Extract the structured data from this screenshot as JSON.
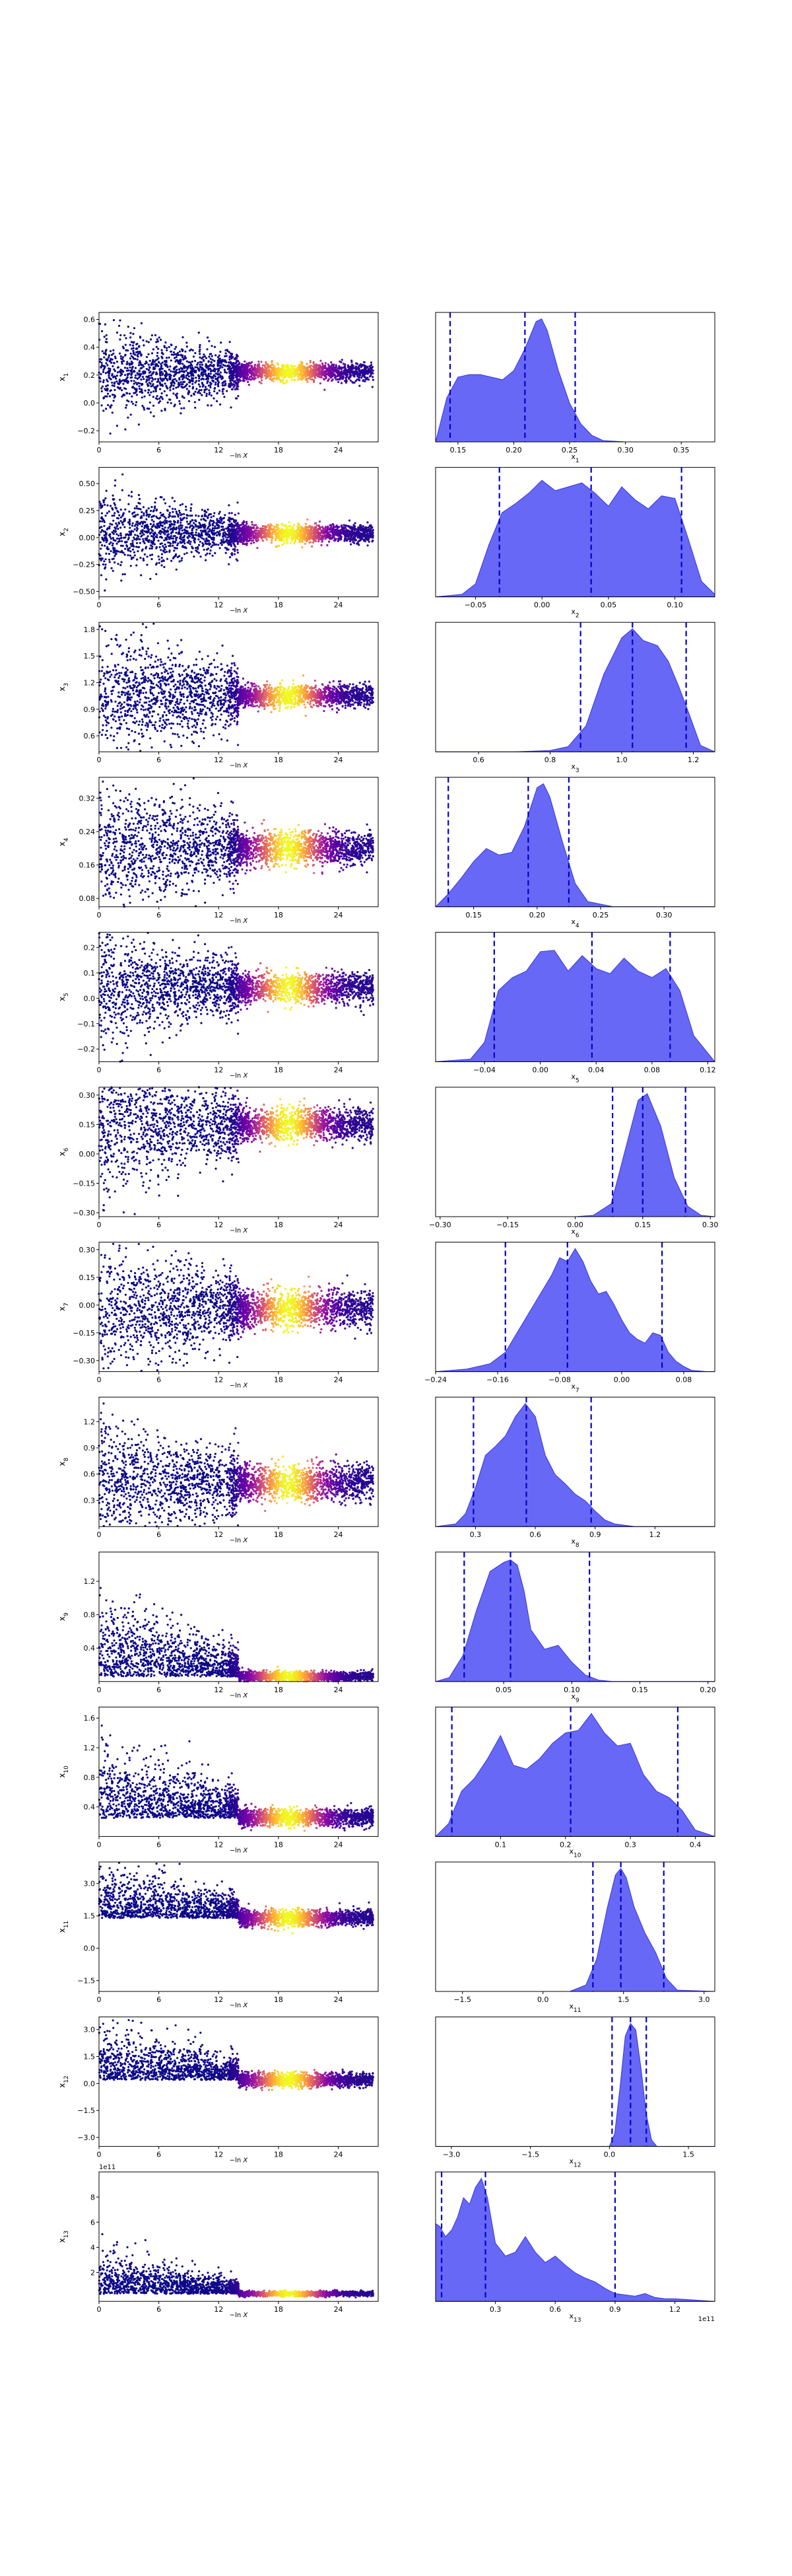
{
  "chart_data": [
    {
      "type": "scatter",
      "row": 1,
      "xlabel": "−ln X",
      "ylabel": "x_1",
      "xticks": [
        "0",
        "6",
        "12",
        "18",
        "24"
      ],
      "xlim": [
        0,
        28
      ],
      "ylim": [
        -0.28,
        0.65
      ],
      "yticks": [
        "0.6",
        "0.4",
        "0.2",
        "0.0",
        "−0.2"
      ],
      "ytick_values": [
        0.6,
        0.4,
        0.2,
        0.0,
        -0.2
      ],
      "center": 0.22,
      "head_spread": 0.13,
      "tail_spread": 0.03
    },
    {
      "type": "area",
      "row": 1,
      "xlabel": "x_1",
      "xlim": [
        0.13,
        0.38
      ],
      "xticks": [
        "0.15",
        "0.20",
        "0.25",
        "0.30",
        "0.35"
      ],
      "xtick_values": [
        0.15,
        0.2,
        0.25,
        0.3,
        0.35
      ],
      "x": [
        0.13,
        0.14,
        0.15,
        0.16,
        0.17,
        0.18,
        0.19,
        0.2,
        0.21,
        0.22,
        0.225,
        0.23,
        0.24,
        0.25,
        0.26,
        0.27,
        0.28,
        0.3,
        0.38
      ],
      "y": [
        0.0,
        0.34,
        0.5,
        0.52,
        0.52,
        0.5,
        0.48,
        0.55,
        0.72,
        0.93,
        0.95,
        0.86,
        0.55,
        0.3,
        0.14,
        0.05,
        0.01,
        0.0,
        0.0
      ],
      "quantile_lines": [
        0.143,
        0.21,
        0.255
      ]
    },
    {
      "type": "scatter",
      "row": 2,
      "xlabel": "−ln X",
      "ylabel": "x_2",
      "xticks": [
        "0",
        "6",
        "12",
        "18",
        "24"
      ],
      "xlim": [
        0,
        28
      ],
      "ylim": [
        -0.55,
        0.65
      ],
      "yticks": [
        "0.50",
        "0.25",
        "0.00",
        "−0.25",
        "−0.50"
      ],
      "ytick_values": [
        0.5,
        0.25,
        0.0,
        -0.25,
        -0.5
      ],
      "center": 0.04,
      "head_spread": 0.15,
      "tail_spread": 0.04
    },
    {
      "type": "area",
      "row": 2,
      "xlabel": "x_2",
      "xlim": [
        -0.08,
        0.13
      ],
      "xticks": [
        "−0.05",
        "0.00",
        "0.05",
        "0.10"
      ],
      "xtick_values": [
        -0.05,
        0.0,
        0.05,
        0.1
      ],
      "x": [
        -0.08,
        -0.06,
        -0.05,
        -0.04,
        -0.03,
        -0.02,
        -0.01,
        0.0,
        0.01,
        0.02,
        0.03,
        0.04,
        0.05,
        0.06,
        0.07,
        0.08,
        0.09,
        0.1,
        0.11,
        0.12,
        0.13
      ],
      "y": [
        0.0,
        0.02,
        0.1,
        0.4,
        0.65,
        0.72,
        0.8,
        0.9,
        0.82,
        0.85,
        0.88,
        0.8,
        0.7,
        0.85,
        0.75,
        0.68,
        0.78,
        0.76,
        0.45,
        0.12,
        0.02
      ],
      "quantile_lines": [
        -0.032,
        0.037,
        0.105
      ]
    },
    {
      "type": "scatter",
      "row": 3,
      "xlabel": "−ln X",
      "ylabel": "x_3",
      "xticks": [
        "0",
        "6",
        "12",
        "18",
        "24"
      ],
      "xlim": [
        0,
        28
      ],
      "ylim": [
        0.42,
        1.88
      ],
      "yticks": [
        "1.8",
        "1.5",
        "1.2",
        "0.9",
        "0.6"
      ],
      "ytick_values": [
        1.8,
        1.5,
        1.2,
        0.9,
        0.6
      ],
      "center": 1.05,
      "head_spread": 0.3,
      "tail_spread": 0.06
    },
    {
      "type": "area",
      "row": 3,
      "xlabel": "x_3",
      "xlim": [
        0.48,
        1.26
      ],
      "xticks": [
        "0.6",
        "0.8",
        "1.0",
        "1.2"
      ],
      "xtick_values": [
        0.6,
        0.8,
        1.0,
        1.2
      ],
      "x": [
        0.48,
        0.7,
        0.8,
        0.85,
        0.9,
        0.95,
        1.0,
        1.03,
        1.06,
        1.1,
        1.13,
        1.16,
        1.19,
        1.22,
        1.26
      ],
      "y": [
        0.0,
        0.0,
        0.01,
        0.04,
        0.2,
        0.6,
        0.88,
        0.95,
        0.86,
        0.82,
        0.7,
        0.5,
        0.28,
        0.05,
        0.0
      ],
      "quantile_lines": [
        0.885,
        1.03,
        1.18
      ]
    },
    {
      "type": "scatter",
      "row": 4,
      "xlabel": "−ln X",
      "ylabel": "x_4",
      "xticks": [
        "0",
        "6",
        "12",
        "18",
        "24"
      ],
      "xlim": [
        0,
        28
      ],
      "ylim": [
        0.06,
        0.37
      ],
      "yticks": [
        "0.32",
        "0.24",
        "0.16",
        "0.08"
      ],
      "ytick_values": [
        0.32,
        0.24,
        0.16,
        0.08
      ],
      "center": 0.2,
      "head_spread": 0.06,
      "tail_spread": 0.02
    },
    {
      "type": "area",
      "row": 4,
      "xlabel": "x_4",
      "xlim": [
        0.12,
        0.34
      ],
      "xticks": [
        "0.15",
        "0.20",
        "0.25",
        "0.30"
      ],
      "xtick_values": [
        0.15,
        0.2,
        0.25,
        0.3
      ],
      "x": [
        0.12,
        0.13,
        0.14,
        0.15,
        0.16,
        0.17,
        0.18,
        0.19,
        0.2,
        0.205,
        0.21,
        0.22,
        0.23,
        0.24,
        0.26,
        0.34
      ],
      "y": [
        0.0,
        0.1,
        0.22,
        0.35,
        0.45,
        0.4,
        0.42,
        0.62,
        0.92,
        0.95,
        0.85,
        0.5,
        0.18,
        0.04,
        0.0,
        0.0
      ],
      "quantile_lines": [
        0.13,
        0.193,
        0.225
      ]
    },
    {
      "type": "scatter",
      "row": 5,
      "xlabel": "−ln X",
      "ylabel": "x_5",
      "xticks": [
        "0",
        "6",
        "12",
        "18",
        "24"
      ],
      "xlim": [
        0,
        28
      ],
      "ylim": [
        -0.25,
        0.26
      ],
      "yticks": [
        "0.2",
        "0.1",
        "0.0",
        "−0.1",
        "−0.2"
      ],
      "ytick_values": [
        0.2,
        0.1,
        0.0,
        -0.1,
        -0.2
      ],
      "center": 0.04,
      "head_spread": 0.08,
      "tail_spread": 0.03
    },
    {
      "type": "area",
      "row": 5,
      "xlabel": "x_5",
      "xlim": [
        -0.075,
        0.125
      ],
      "xticks": [
        "−0.04",
        "0.00",
        "0.04",
        "0.08",
        "0.12"
      ],
      "xtick_values": [
        -0.04,
        0.0,
        0.04,
        0.08,
        0.12
      ],
      "x": [
        -0.075,
        -0.05,
        -0.04,
        -0.03,
        -0.02,
        -0.01,
        0.0,
        0.01,
        0.02,
        0.03,
        0.04,
        0.05,
        0.06,
        0.07,
        0.08,
        0.09,
        0.1,
        0.11,
        0.125
      ],
      "y": [
        0.0,
        0.02,
        0.15,
        0.55,
        0.65,
        0.7,
        0.85,
        0.86,
        0.7,
        0.82,
        0.72,
        0.68,
        0.8,
        0.7,
        0.65,
        0.72,
        0.55,
        0.2,
        0.0
      ],
      "quantile_lines": [
        -0.033,
        0.037,
        0.093
      ]
    },
    {
      "type": "scatter",
      "row": 6,
      "xlabel": "−ln X",
      "ylabel": "x_6",
      "xticks": [
        "0",
        "6",
        "12",
        "18",
        "24"
      ],
      "xlim": [
        0,
        28
      ],
      "ylim": [
        -0.32,
        0.34
      ],
      "yticks": [
        "0.30",
        "0.15",
        "0.00",
        "−0.15",
        "−0.30"
      ],
      "ytick_values": [
        0.3,
        0.15,
        0.0,
        -0.15,
        -0.3
      ],
      "center": 0.15,
      "head_spread": 0.14,
      "tail_spread": 0.04
    },
    {
      "type": "area",
      "row": 6,
      "xlabel": "x_6",
      "xlim": [
        -0.31,
        0.31
      ],
      "xticks": [
        "−0.30",
        "−0.15",
        "0.00",
        "0.15",
        "0.30"
      ],
      "xtick_values": [
        -0.3,
        -0.15,
        0.0,
        0.15,
        0.3
      ],
      "x": [
        -0.31,
        0.0,
        0.04,
        0.08,
        0.11,
        0.14,
        0.16,
        0.19,
        0.22,
        0.25,
        0.28,
        0.31
      ],
      "y": [
        0.0,
        0.0,
        0.01,
        0.1,
        0.5,
        0.9,
        0.95,
        0.7,
        0.3,
        0.08,
        0.01,
        0.0
      ],
      "quantile_lines": [
        0.083,
        0.15,
        0.245
      ]
    },
    {
      "type": "scatter",
      "row": 7,
      "xlabel": "−ln X",
      "ylabel": "x_7",
      "xticks": [
        "0",
        "6",
        "12",
        "18",
        "24"
      ],
      "xlim": [
        0,
        28
      ],
      "ylim": [
        -0.36,
        0.34
      ],
      "yticks": [
        "0.30",
        "0.15",
        "0.00",
        "−0.15",
        "−0.30"
      ],
      "ytick_values": [
        0.3,
        0.15,
        0.0,
        -0.15,
        -0.3
      ],
      "center": -0.02,
      "head_spread": 0.13,
      "tail_spread": 0.05
    },
    {
      "type": "area",
      "row": 7,
      "xlabel": "x_7",
      "xlim": [
        -0.24,
        0.12
      ],
      "xticks": [
        "−0.24",
        "−0.16",
        "−0.08",
        "0.00",
        "0.08"
      ],
      "xtick_values": [
        -0.24,
        -0.16,
        -0.08,
        0.0,
        0.08
      ],
      "x": [
        -0.24,
        -0.2,
        -0.17,
        -0.15,
        -0.13,
        -0.11,
        -0.09,
        -0.08,
        -0.07,
        -0.06,
        -0.05,
        -0.04,
        -0.03,
        -0.02,
        -0.01,
        0.0,
        0.01,
        0.02,
        0.03,
        0.04,
        0.05,
        0.06,
        0.07,
        0.08,
        0.09,
        0.11,
        0.12
      ],
      "y": [
        0.0,
        0.02,
        0.06,
        0.15,
        0.35,
        0.55,
        0.75,
        0.88,
        0.85,
        0.95,
        0.85,
        0.7,
        0.6,
        0.62,
        0.52,
        0.4,
        0.3,
        0.25,
        0.22,
        0.3,
        0.28,
        0.15,
        0.08,
        0.04,
        0.01,
        0.0,
        0.0
      ],
      "quantile_lines": [
        -0.15,
        -0.07,
        0.052
      ]
    },
    {
      "type": "scatter",
      "row": 8,
      "xlabel": "−ln X",
      "ylabel": "x_8",
      "xticks": [
        "0",
        "6",
        "12",
        "18",
        "24"
      ],
      "xlim": [
        0,
        28
      ],
      "ylim": [
        0.0,
        1.48
      ],
      "yticks": [
        "1.2",
        "0.9",
        "0.6",
        "0.3"
      ],
      "ytick_values": [
        1.2,
        0.9,
        0.6,
        0.3
      ],
      "center": 0.5,
      "head_spread": 0.25,
      "tail_spread": 0.1
    },
    {
      "type": "area",
      "row": 8,
      "xlabel": "x_8",
      "xlim": [
        0.1,
        1.5
      ],
      "xticks": [
        "0.3",
        "0.6",
        "0.9",
        "1.2"
      ],
      "xtick_values": [
        0.3,
        0.6,
        0.9,
        1.2
      ],
      "x": [
        0.1,
        0.2,
        0.25,
        0.3,
        0.35,
        0.4,
        0.45,
        0.5,
        0.55,
        0.6,
        0.65,
        0.7,
        0.75,
        0.8,
        0.85,
        0.9,
        0.95,
        1.0,
        1.1,
        1.5
      ],
      "y": [
        0.0,
        0.02,
        0.1,
        0.3,
        0.55,
        0.62,
        0.7,
        0.85,
        0.95,
        0.85,
        0.55,
        0.4,
        0.33,
        0.25,
        0.2,
        0.12,
        0.05,
        0.02,
        0.0,
        0.0
      ],
      "quantile_lines": [
        0.29,
        0.555,
        0.88
      ]
    },
    {
      "type": "scatter",
      "row": 9,
      "xlabel": "−ln X",
      "ylabel": "x_9",
      "xticks": [
        "0",
        "6",
        "12",
        "18",
        "24"
      ],
      "xlim": [
        0,
        28
      ],
      "ylim": [
        0.0,
        1.55
      ],
      "yticks": [
        "1.2",
        "0.8",
        "0.4"
      ],
      "ytick_values": [
        1.2,
        0.8,
        0.4
      ],
      "center": 0.06,
      "head_spread": 0.4,
      "tail_spread": 0.03
    },
    {
      "type": "area",
      "row": 9,
      "xlabel": "x_9",
      "xlim": [
        0.0,
        0.205
      ],
      "xticks": [
        "0.05",
        "0.10",
        "0.15",
        "0.20"
      ],
      "xtick_values": [
        0.05,
        0.1,
        0.15,
        0.2
      ],
      "x": [
        0.0,
        0.01,
        0.02,
        0.03,
        0.04,
        0.05,
        0.055,
        0.06,
        0.065,
        0.07,
        0.08,
        0.09,
        0.1,
        0.11,
        0.12,
        0.13,
        0.205
      ],
      "y": [
        0.0,
        0.03,
        0.2,
        0.55,
        0.85,
        0.92,
        0.94,
        0.9,
        0.7,
        0.4,
        0.25,
        0.28,
        0.15,
        0.05,
        0.01,
        0.0,
        0.0
      ],
      "quantile_lines": [
        0.021,
        0.055,
        0.113
      ]
    },
    {
      "type": "scatter",
      "row": 10,
      "xlabel": "−ln X",
      "ylabel": "x_10",
      "xticks": [
        "0",
        "6",
        "12",
        "18",
        "24"
      ],
      "xlim": [
        0,
        28
      ],
      "ylim": [
        0.0,
        1.75
      ],
      "yticks": [
        "1.6",
        "1.2",
        "0.8",
        "0.4"
      ],
      "ytick_values": [
        1.6,
        1.2,
        0.8,
        0.4
      ],
      "center": 0.25,
      "head_spread": 0.4,
      "tail_spread": 0.06
    },
    {
      "type": "area",
      "row": 10,
      "xlabel": "x_10",
      "xlim": [
        0.0,
        0.43
      ],
      "xticks": [
        "0.1",
        "0.2",
        "0.3",
        "0.4"
      ],
      "xtick_values": [
        0.1,
        0.2,
        0.3,
        0.4
      ],
      "x": [
        0.0,
        0.02,
        0.04,
        0.06,
        0.08,
        0.1,
        0.12,
        0.14,
        0.16,
        0.18,
        0.2,
        0.22,
        0.24,
        0.26,
        0.28,
        0.3,
        0.32,
        0.34,
        0.36,
        0.38,
        0.4,
        0.43
      ],
      "y": [
        0.0,
        0.1,
        0.35,
        0.45,
        0.6,
        0.78,
        0.55,
        0.52,
        0.6,
        0.72,
        0.8,
        0.82,
        0.95,
        0.8,
        0.7,
        0.72,
        0.48,
        0.35,
        0.3,
        0.2,
        0.05,
        0.0
      ],
      "quantile_lines": [
        0.025,
        0.208,
        0.373
      ]
    },
    {
      "type": "scatter",
      "row": 11,
      "xlabel": "−ln X",
      "ylabel": "x_11",
      "xticks": [
        "0",
        "6",
        "12",
        "18",
        "24"
      ],
      "xlim": [
        0,
        28
      ],
      "ylim": [
        -2.0,
        4.0
      ],
      "yticks": [
        "3.0",
        "1.5",
        "0.0",
        "−1.5"
      ],
      "ytick_values": [
        3.0,
        1.5,
        0.0,
        -1.5
      ],
      "center": 1.4,
      "head_spread": 0.9,
      "tail_spread": 0.2
    },
    {
      "type": "area",
      "row": 11,
      "xlabel": "x_11",
      "xlim": [
        -2.0,
        3.2
      ],
      "xticks": [
        "−1.5",
        "0.0",
        "1.5",
        "3.0"
      ],
      "xtick_values": [
        -1.5,
        0.0,
        1.5,
        3.0
      ],
      "x": [
        -2.0,
        0.5,
        0.8,
        1.0,
        1.2,
        1.35,
        1.45,
        1.55,
        1.7,
        1.9,
        2.1,
        2.3,
        2.5,
        3.2
      ],
      "y": [
        0.0,
        0.0,
        0.05,
        0.25,
        0.65,
        0.9,
        0.95,
        0.88,
        0.65,
        0.45,
        0.3,
        0.1,
        0.01,
        0.0
      ],
      "quantile_lines": [
        0.93,
        1.45,
        2.25
      ]
    },
    {
      "type": "scatter",
      "row": 12,
      "xlabel": "−ln X",
      "ylabel": "x_12",
      "xticks": [
        "0",
        "6",
        "12",
        "18",
        "24"
      ],
      "xlim": [
        0,
        28
      ],
      "ylim": [
        -3.5,
        3.7
      ],
      "yticks": [
        "3.0",
        "1.5",
        "0.0",
        "−1.5",
        "−3.0"
      ],
      "ytick_values": [
        3.0,
        1.5,
        0.0,
        -1.5,
        -3.0
      ],
      "center": 0.2,
      "head_spread": 1.2,
      "tail_spread": 0.2
    },
    {
      "type": "area",
      "row": 12,
      "xlabel": "x_12",
      "xlim": [
        -3.3,
        2.0
      ],
      "xticks": [
        "−3.0",
        "−1.5",
        "0.0",
        "1.5"
      ],
      "xtick_values": [
        -3.0,
        -1.5,
        0.0,
        1.5
      ],
      "x": [
        -3.3,
        0.0,
        0.1,
        0.2,
        0.3,
        0.4,
        0.5,
        0.6,
        0.7,
        0.8,
        0.9,
        2.0
      ],
      "y": [
        0.0,
        0.0,
        0.1,
        0.45,
        0.85,
        0.95,
        0.9,
        0.6,
        0.25,
        0.05,
        0.0,
        0.0
      ],
      "quantile_lines": [
        0.05,
        0.4,
        0.7
      ]
    },
    {
      "type": "scatter",
      "row": 13,
      "xlabel": "−ln X",
      "ylabel": "x_13",
      "xticks": [
        "0",
        "6",
        "12",
        "18",
        "24"
      ],
      "xlim": [
        0,
        28
      ],
      "ylim": [
        -0.3,
        10.0
      ],
      "yticks": [
        "8",
        "6",
        "4",
        "2"
      ],
      "ytick_values": [
        8,
        6,
        4,
        2
      ],
      "offset_text": "1e11",
      "center": 0.3,
      "head_spread": 1.5,
      "tail_spread": 0.1
    },
    {
      "type": "area",
      "row": 13,
      "xlabel": "x_13",
      "xlim": [
        0.0,
        1.4
      ],
      "xticks": [
        "0.3",
        "0.6",
        "0.9",
        "1.2"
      ],
      "xtick_values": [
        0.3,
        0.6,
        0.9,
        1.2
      ],
      "offset_text": "1e11",
      "x": [
        0.0,
        0.02,
        0.05,
        0.08,
        0.11,
        0.14,
        0.17,
        0.2,
        0.23,
        0.26,
        0.3,
        0.35,
        0.4,
        0.45,
        0.5,
        0.55,
        0.6,
        0.65,
        0.7,
        0.75,
        0.8,
        0.85,
        0.9,
        0.95,
        1.0,
        1.05,
        1.1,
        1.15,
        1.2,
        1.3,
        1.4
      ],
      "y": [
        0.6,
        0.58,
        0.5,
        0.55,
        0.65,
        0.8,
        0.75,
        0.88,
        0.95,
        0.8,
        0.45,
        0.35,
        0.38,
        0.5,
        0.38,
        0.3,
        0.35,
        0.28,
        0.22,
        0.18,
        0.15,
        0.1,
        0.06,
        0.05,
        0.04,
        0.06,
        0.03,
        0.02,
        0.02,
        0.01,
        0.0
      ],
      "quantile_lines": [
        0.03,
        0.25,
        0.9
      ]
    }
  ]
}
